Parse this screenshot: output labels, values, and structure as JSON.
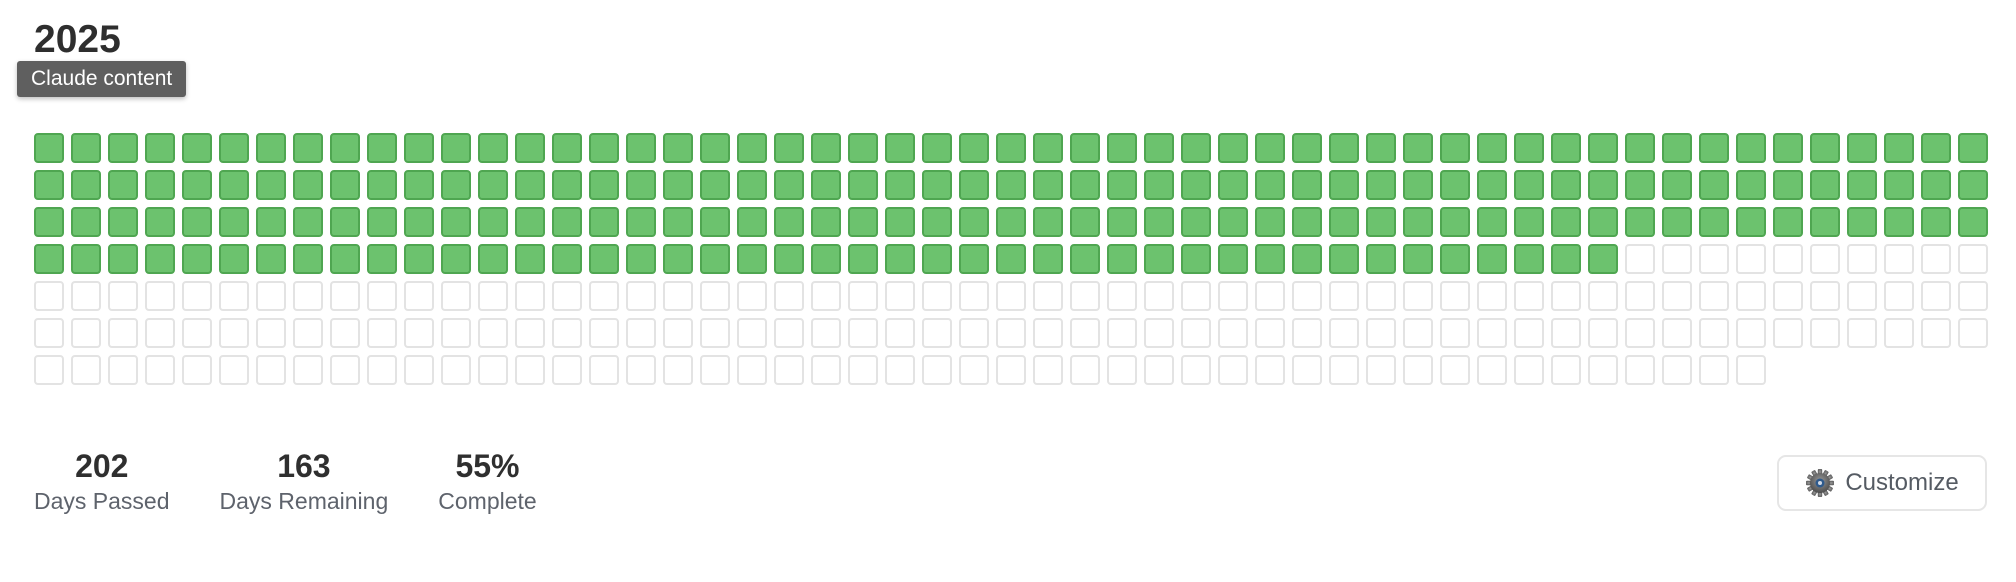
{
  "header": {
    "year": "2025",
    "tooltip": "Claude content"
  },
  "grid": {
    "total_days": 365,
    "days_passed": 202,
    "rows": 7,
    "colors": {
      "passed_fill": "#6cc26e",
      "passed_border": "#4fa651",
      "remaining_border": "#e3e3e3"
    }
  },
  "stats": [
    {
      "value": "202",
      "label": "Days Passed"
    },
    {
      "value": "163",
      "label": "Days Remaining"
    },
    {
      "value": "55%",
      "label": "Complete"
    }
  ],
  "toolbar": {
    "customize_label": "Customize",
    "customize_icon": "gear-icon"
  }
}
